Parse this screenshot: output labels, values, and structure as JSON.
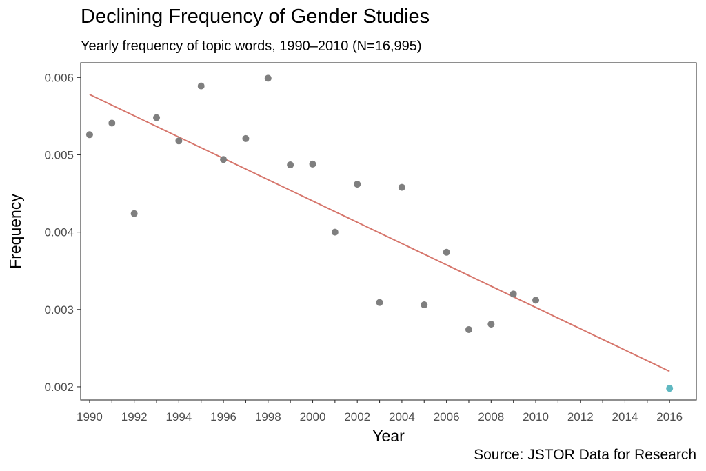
{
  "chart_data": {
    "type": "scatter",
    "title": "Declining Frequency of Gender Studies",
    "subtitle": "Yearly frequency of topic words, 1990–2010 (N=16,995)",
    "xlabel": "Year",
    "ylabel": "Frequency",
    "caption": "Source: JSTOR Data for Research",
    "xlim": [
      1989.6,
      2017.2
    ],
    "ylim": [
      0.00183,
      0.00619
    ],
    "x_ticks": [
      1990,
      1992,
      1994,
      1996,
      1998,
      2000,
      2002,
      2004,
      2006,
      2008,
      2010,
      2012,
      2014,
      2016
    ],
    "x_tick_labels": [
      "1990",
      "1992",
      "1994",
      "1996",
      "1998",
      "2000",
      "2002",
      "2004",
      "2006",
      "2008",
      "2010",
      "2012",
      "2014",
      "2016"
    ],
    "x_minor_ticks": [
      1991,
      1993,
      1995,
      1997,
      1999,
      2001,
      2003,
      2005,
      2007,
      2009,
      2011,
      2013,
      2015
    ],
    "y_ticks": [
      0.002,
      0.003,
      0.004,
      0.005,
      0.006
    ],
    "y_tick_labels": [
      "0.002",
      "0.003",
      "0.004",
      "0.005",
      "0.006"
    ],
    "grid": false,
    "series": [
      {
        "color": "#7f7f7f",
        "points": [
          {
            "x": 1990,
            "y": 0.00526
          },
          {
            "x": 1991,
            "y": 0.00541
          },
          {
            "x": 1992,
            "y": 0.00424
          },
          {
            "x": 1993,
            "y": 0.00548
          },
          {
            "x": 1994,
            "y": 0.00518
          },
          {
            "x": 1995,
            "y": 0.00589
          },
          {
            "x": 1996,
            "y": 0.00494
          },
          {
            "x": 1997,
            "y": 0.00521
          },
          {
            "x": 1998,
            "y": 0.00599
          },
          {
            "x": 1999,
            "y": 0.00487
          },
          {
            "x": 2000,
            "y": 0.00488
          },
          {
            "x": 2001,
            "y": 0.004
          },
          {
            "x": 2002,
            "y": 0.00462
          },
          {
            "x": 2003,
            "y": 0.00309
          },
          {
            "x": 2004,
            "y": 0.00458
          },
          {
            "x": 2005,
            "y": 0.00306
          },
          {
            "x": 2006,
            "y": 0.00374
          },
          {
            "x": 2007,
            "y": 0.00274
          },
          {
            "x": 2008,
            "y": 0.00281
          },
          {
            "x": 2009,
            "y": 0.0032
          },
          {
            "x": 2010,
            "y": 0.00312
          }
        ]
      },
      {
        "color": "#5fb8c1",
        "points": [
          {
            "x": 2016,
            "y": 0.00198
          }
        ]
      }
    ],
    "trend_line": {
      "color": "#d6756b",
      "points": [
        {
          "x": 1990,
          "y": 0.00578
        },
        {
          "x": 2016,
          "y": 0.0022
        }
      ]
    }
  }
}
